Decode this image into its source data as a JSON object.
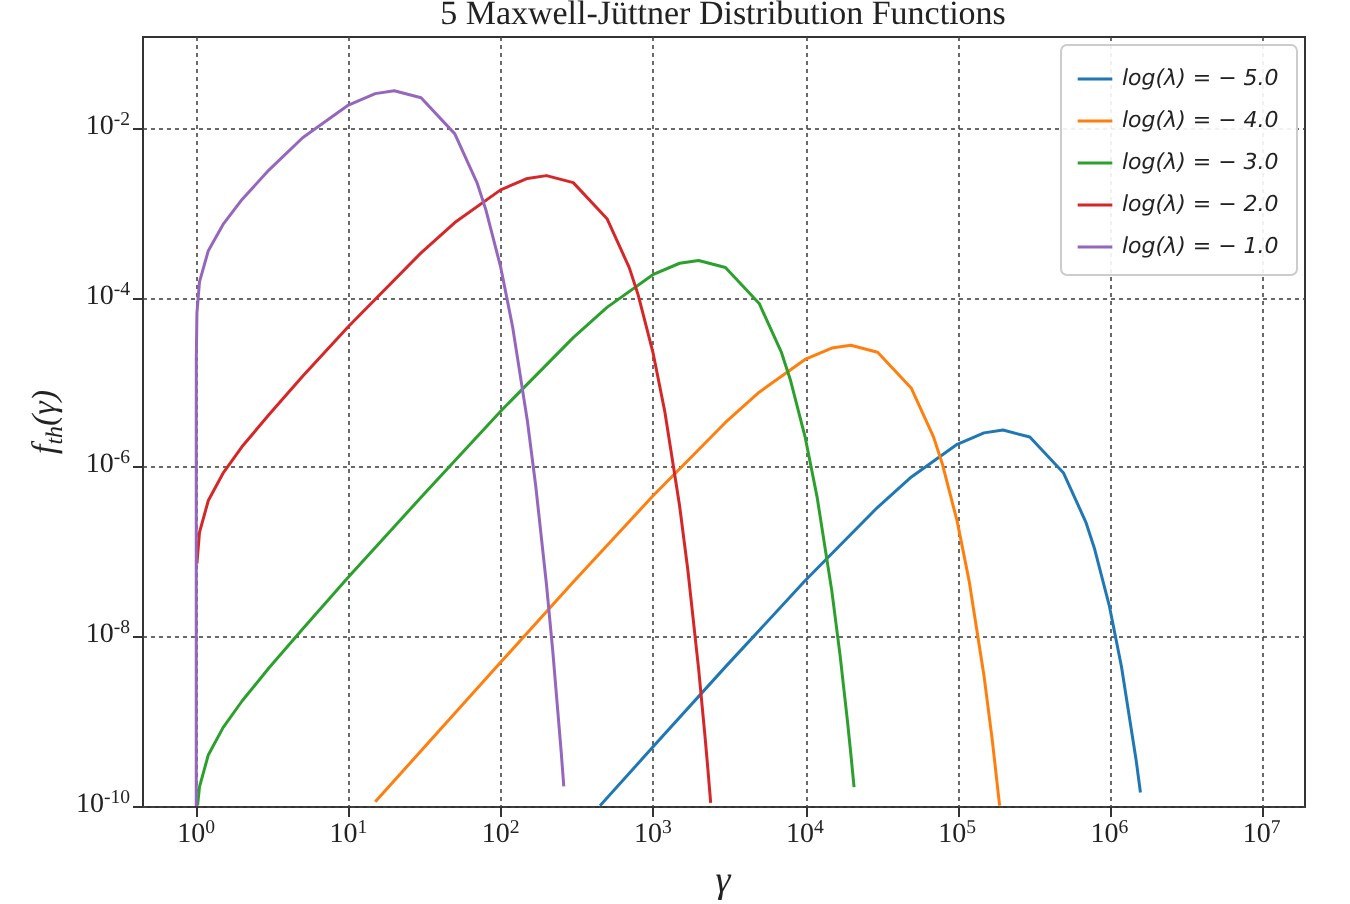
{
  "chart_data": {
    "type": "line",
    "title": "5 Maxwell-Jüttner Distribution Functions",
    "xlabel": "γ",
    "ylabel": "f$_{th}$(γ)",
    "log": "xy",
    "grid": true,
    "legend": "top right",
    "line_style": "solid",
    "marker": "none",
    "xlim": [
      0.44,
      19000000
    ],
    "ylim": [
      1e-10,
      0.12
    ],
    "xticks": [
      {
        "value": 1,
        "label": "10$^{0}$"
      },
      {
        "value": 10,
        "label": "10$^{1}$"
      },
      {
        "value": 100,
        "label": "10$^{2}$"
      },
      {
        "value": 1000,
        "label": "10$^{3}$"
      },
      {
        "value": 10000,
        "label": "10$^{4}$"
      },
      {
        "value": 100000,
        "label": "10$^{5}$"
      },
      {
        "value": 1000000,
        "label": "10$^{6}$"
      },
      {
        "value": 10000000,
        "label": "10$^{7}$"
      }
    ],
    "yticks": [
      {
        "value": 1e-10,
        "label": "10$^{-10}$"
      },
      {
        "value": 1e-08,
        "label": "10$^{-8}$"
      },
      {
        "value": 1e-06,
        "label": "10$^{-6}$"
      },
      {
        "value": 0.0001,
        "label": "10$^{-4}$"
      },
      {
        "value": 0.01,
        "label": "10$^{-2}$"
      }
    ],
    "series": [
      {
        "name": "log(λ) = − 5.0",
        "color": "#1f77b4",
        "x": [
          450,
          1000,
          3000,
          10000,
          30000,
          50000,
          100000,
          150000,
          200000,
          300000,
          500000,
          700000,
          800000,
          1000000,
          1200000,
          1500000,
          1600000
        ],
        "values": [
          1.01e-10,
          4.95e-10,
          4.37e-09,
          4.52e-08,
          3.33e-07,
          7.58e-07,
          1.84e-06,
          2.51e-06,
          2.71e-06,
          2.24e-06,
          8.42e-07,
          2.23e-07,
          1.07e-07,
          2.27e-08,
          4.42e-09,
          3.44e-10,
          1.44e-10
        ]
      },
      {
        "name": "log(λ) = − 4.0",
        "color": "#ff7f0e",
        "x": [
          15,
          100,
          300,
          1000,
          3000,
          5000,
          10000,
          15000,
          20000,
          30000,
          50000,
          70000,
          80000,
          100000,
          120000,
          150000,
          170000,
          190000
        ],
        "values": [
          1.12e-10,
          4.95e-09,
          4.37e-08,
          4.52e-07,
          3.33e-06,
          7.58e-06,
          1.84e-05,
          2.51e-05,
          2.71e-05,
          2.24e-05,
          8.42e-06,
          2.23e-06,
          1.07e-06,
          2.27e-07,
          4.42e-08,
          3.44e-09,
          5.98e-10,
          1.01e-10
        ]
      },
      {
        "name": "log(λ) = − 3.0",
        "color": "#2ca02c",
        "x": [
          1.02,
          1.05,
          1.2,
          1.5,
          2,
          3,
          5,
          10,
          30,
          100,
          300,
          500,
          1000,
          1500,
          2000,
          3000,
          5000,
          7000,
          8000,
          10000,
          12000,
          15000,
          17000,
          19000,
          20000,
          21000
        ],
        "values": [
          1.02e-10,
          1.68e-10,
          4e-10,
          8.4e-10,
          1.73e-09,
          4.24e-09,
          1.22e-08,
          5e-08,
          4.37e-07,
          4.52e-06,
          3.33e-05,
          7.58e-05,
          0.000184,
          0.000251,
          0.000271,
          0.000224,
          8.42e-05,
          2.23e-05,
          1.07e-05,
          2.27e-06,
          4.42e-07,
          3.44e-08,
          5.98e-09,
          1.01e-09,
          4.12e-10,
          1.67e-10
        ]
      },
      {
        "name": "log(λ) = − 2.0",
        "color": "#d62728",
        "x": [
          1.01,
          1.05,
          1.2,
          1.5,
          2,
          3,
          5,
          10,
          30,
          50,
          100,
          150,
          200,
          300,
          500,
          700,
          800,
          1000,
          1200,
          1500,
          1700,
          2000,
          2200,
          2300,
          2400
        ],
        "values": [
          7.2e-08,
          1.68e-07,
          4e-07,
          8.4e-07,
          1.73e-06,
          4.1e-06,
          1.17e-05,
          4.5e-05,
          0.000333,
          0.000758,
          0.00184,
          0.00251,
          0.00271,
          0.00224,
          0.000842,
          0.000223,
          0.000107,
          2.27e-05,
          4.42e-06,
          3.44e-07,
          5.98e-08,
          4.12e-09,
          6.75e-10,
          2.72e-10,
          1.09e-10
        ]
      },
      {
        "name": "log(λ) = − 1.0",
        "color": "#9467bd",
        "x": [
          1.00000000000002,
          1.00001,
          1.001,
          1.01,
          1.05,
          1.2,
          1.5,
          2,
          3,
          5,
          10,
          15,
          20,
          30,
          50,
          70,
          80,
          100,
          120,
          150,
          170,
          200,
          220,
          250,
          260
        ],
        "values": [
          1e-10,
          2.24e-06,
          2e-05,
          6.5e-05,
          0.000151,
          0.000353,
          0.00072,
          0.00142,
          0.00315,
          0.00758,
          0.0184,
          0.0251,
          0.0271,
          0.0224,
          0.00842,
          0.00223,
          0.00107,
          0.000227,
          4.42e-05,
          3.44e-06,
          5.98e-07,
          4.12e-08,
          6.75e-09,
          4.34e-10,
          1.7e-10
        ]
      }
    ]
  }
}
